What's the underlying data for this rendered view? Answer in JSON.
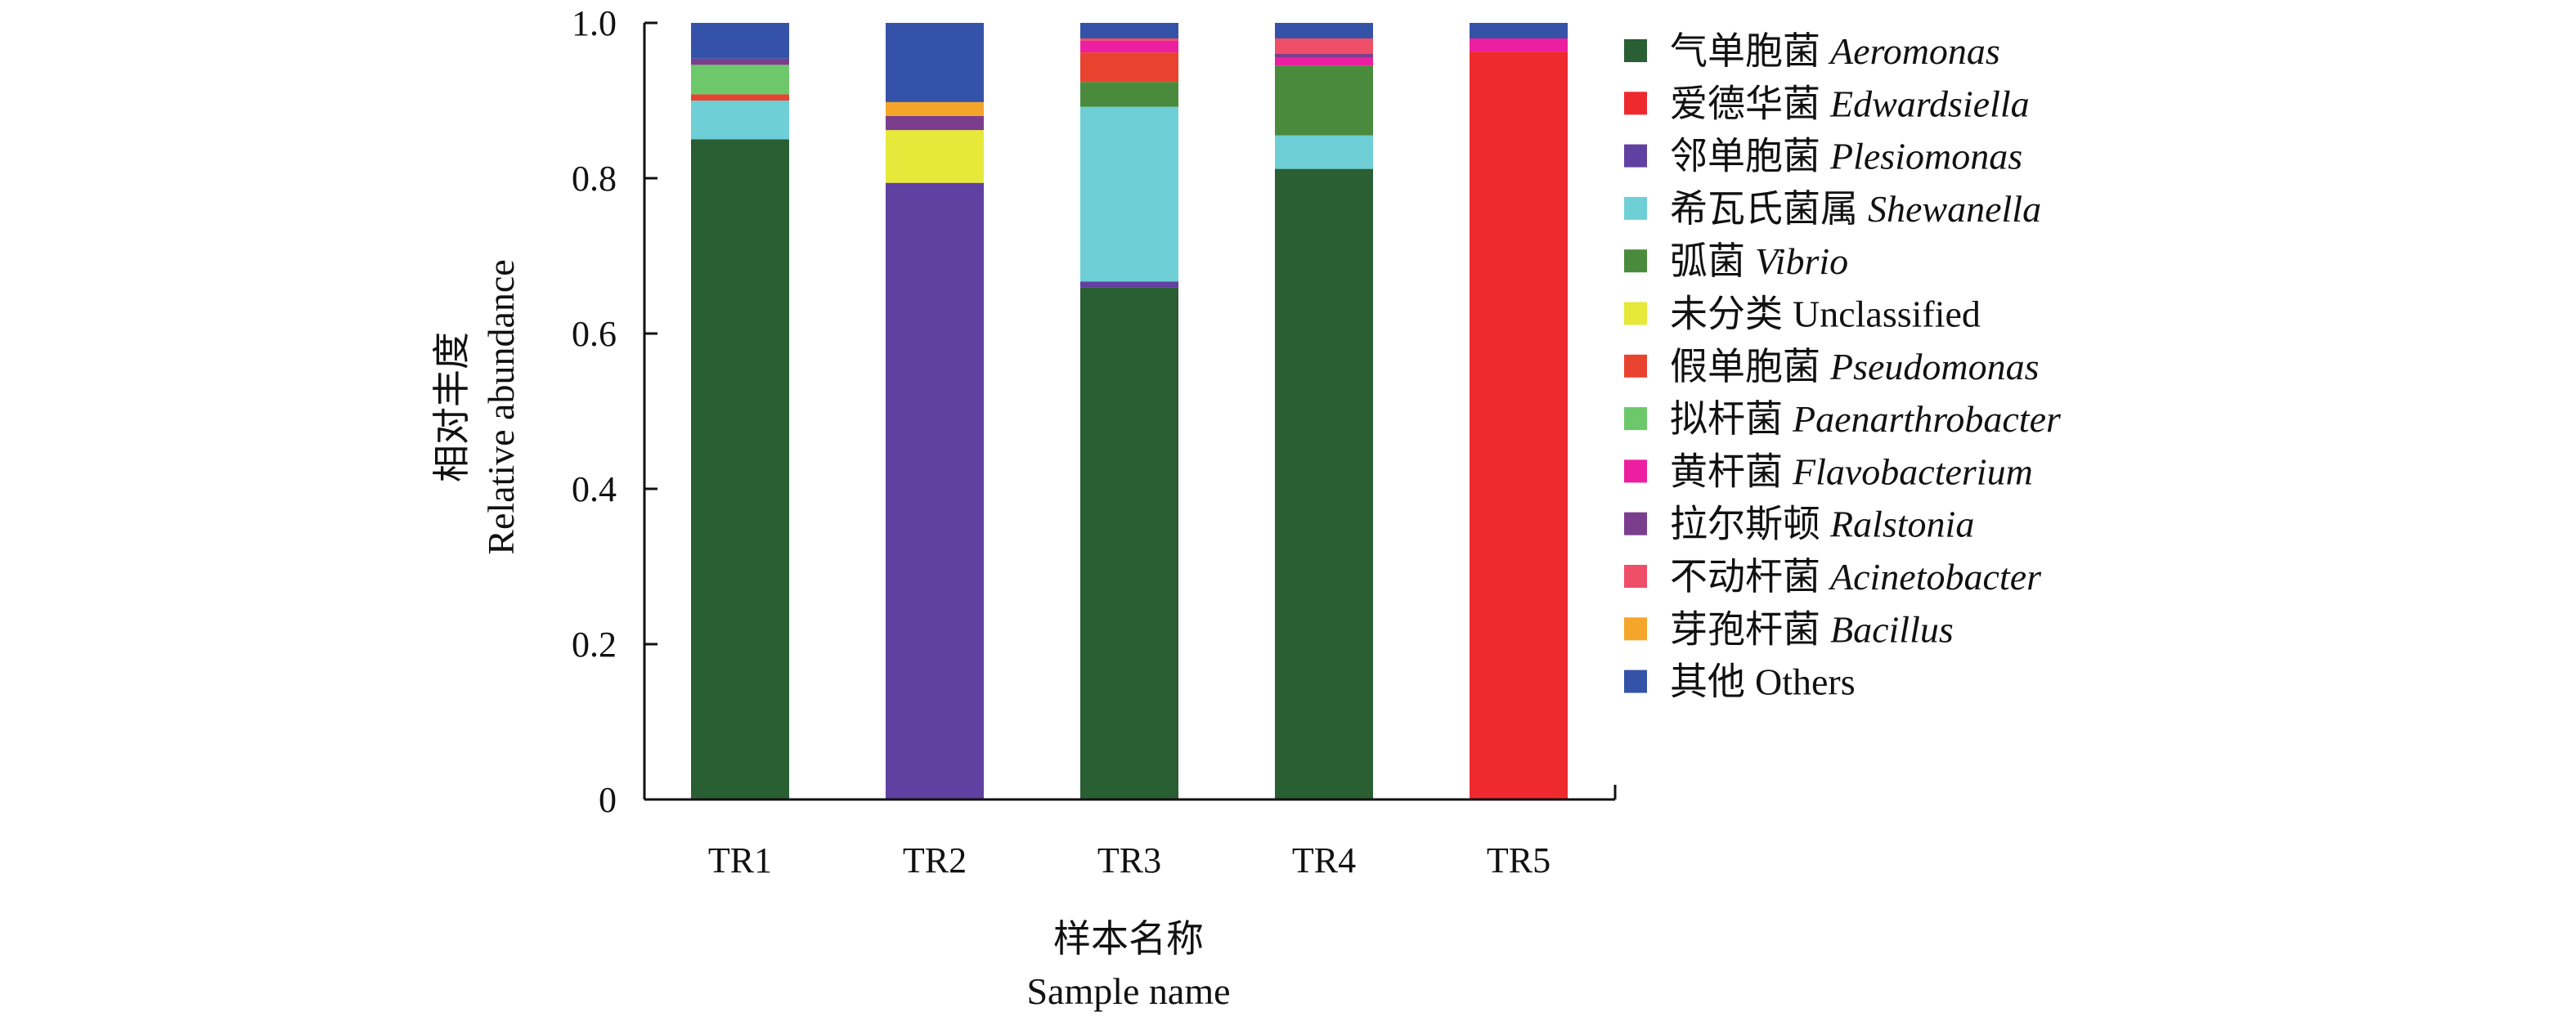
{
  "chart_data": {
    "type": "bar",
    "stacked": true,
    "categories": [
      "TR1",
      "TR2",
      "TR3",
      "TR4",
      "TR5"
    ],
    "xlabel_cn": "样本名称",
    "xlabel_en": "Sample name",
    "ylabel_cn": "相对丰度",
    "ylabel_en": "Relative abundance",
    "ylim": [
      0,
      1.0
    ],
    "yticks": [
      {
        "value": 0,
        "label": "0"
      },
      {
        "value": 0.2,
        "label": "0.2"
      },
      {
        "value": 0.4,
        "label": "0.4"
      },
      {
        "value": 0.6,
        "label": "0.6"
      },
      {
        "value": 0.8,
        "label": "0.8"
      },
      {
        "value": 1.0,
        "label": "1.0"
      }
    ],
    "grid": false,
    "legend_position": "right",
    "series": [
      {
        "name_cn": "气单胞菌",
        "name_latin": "Aeromonas",
        "italic": true,
        "color": "#2a5e33",
        "values": [
          0.85,
          0.0,
          0.659,
          0.812,
          0.0
        ]
      },
      {
        "name_cn": "爱德华菌",
        "name_latin": "Edwardsiella",
        "italic": true,
        "color": "#ee2a2e",
        "values": [
          0.0,
          0.0,
          0.0,
          0.0,
          0.963
        ]
      },
      {
        "name_cn": "邻单胞菌",
        "name_latin": "Plesiomonas",
        "italic": true,
        "color": "#6040a0",
        "values": [
          0.0,
          0.794,
          0.008,
          0.0,
          0.0
        ]
      },
      {
        "name_cn": "希瓦氏菌属",
        "name_latin": "Shewanella",
        "italic": true,
        "color": "#6fcfd6",
        "values": [
          0.05,
          0.0,
          0.225,
          0.043,
          0.0
        ]
      },
      {
        "name_cn": "弧菌",
        "name_latin": "Vibrio",
        "italic": true,
        "color": "#4a8a3c",
        "values": [
          0.0,
          0.0,
          0.032,
          0.09,
          0.0
        ]
      },
      {
        "name_cn": "未分类",
        "name_latin": "Unclassified",
        "italic": false,
        "color": "#e6e83a",
        "values": [
          0.0,
          0.068,
          0.0,
          0.0,
          0.0
        ]
      },
      {
        "name_cn": "假单胞菌",
        "name_latin": "Pseudomonas",
        "italic": true,
        "color": "#e8432e",
        "values": [
          0.008,
          0.0,
          0.038,
          0.0,
          0.0
        ]
      },
      {
        "name_cn": "拟杆菌",
        "name_latin": "Paenarthrobacter",
        "italic": true,
        "color": "#6cc86a",
        "values": [
          0.038,
          0.0,
          0.0,
          0.0,
          0.0
        ]
      },
      {
        "name_cn": "黄杆菌",
        "name_latin": "Flavobacterium",
        "italic": true,
        "color": "#ec1fa0",
        "values": [
          0.0,
          0.0,
          0.015,
          0.01,
          0.017
        ]
      },
      {
        "name_cn": "拉尔斯顿",
        "name_latin": "Ralstonia",
        "italic": true,
        "color": "#7a3e8c",
        "values": [
          0.008,
          0.018,
          0.0,
          0.005,
          0.0
        ]
      },
      {
        "name_cn": "不动杆菌",
        "name_latin": "Acinetobacter",
        "italic": true,
        "color": "#ee4e68",
        "values": [
          0.0,
          0.0,
          0.003,
          0.02,
          0.0
        ]
      },
      {
        "name_cn": "芽孢杆菌",
        "name_latin": "Bacillus",
        "italic": true,
        "color": "#f5a52a",
        "values": [
          0.0,
          0.018,
          0.0,
          0.0,
          0.0
        ]
      },
      {
        "name_cn": "其他",
        "name_latin": "Others",
        "italic": false,
        "color": "#3453a8",
        "values": [
          0.046,
          0.102,
          0.02,
          0.02,
          0.02
        ]
      }
    ]
  }
}
